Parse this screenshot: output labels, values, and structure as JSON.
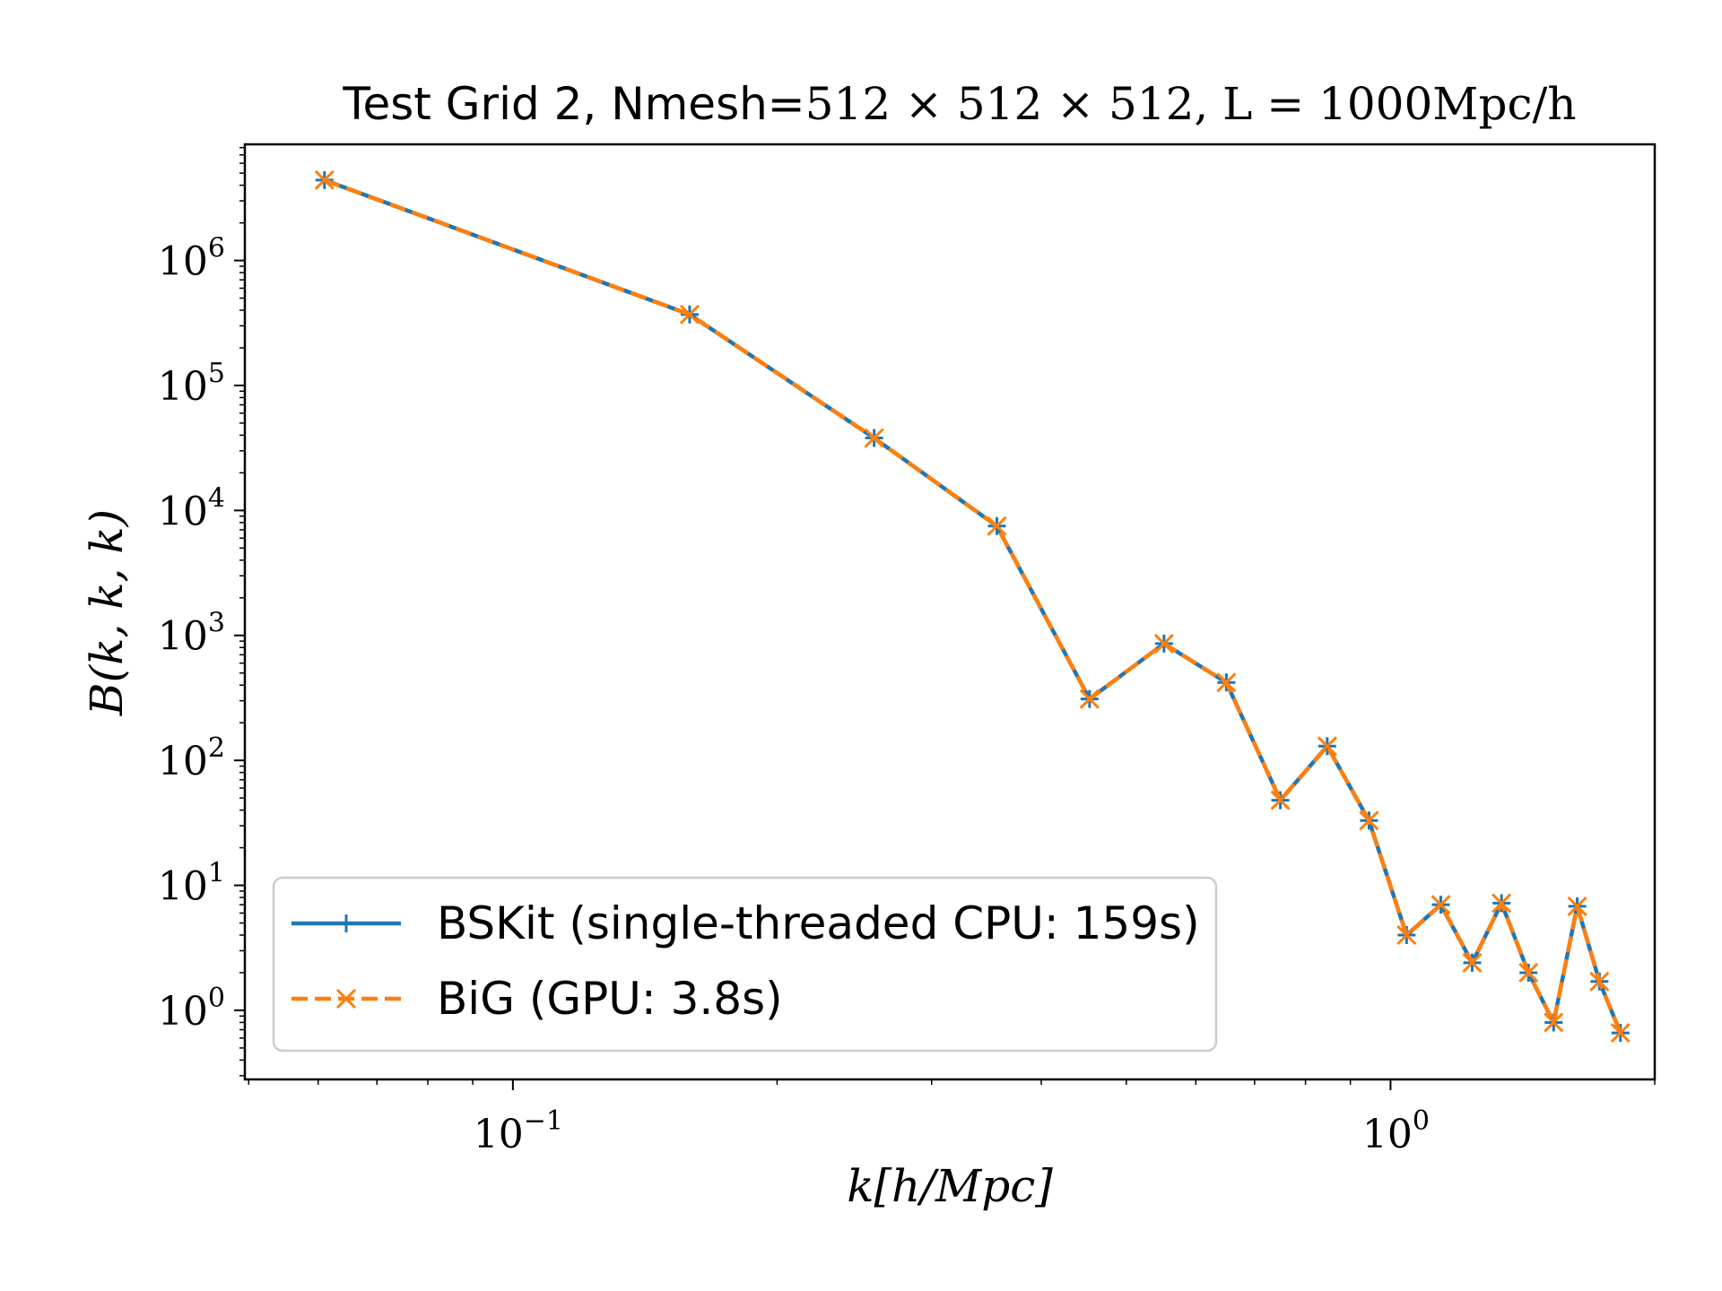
{
  "chart_data": {
    "type": "line",
    "title_prefix": "Test Grid 2, Nmesh=",
    "title_math": "512 × 512 × 512, L = 1000Mpc/h",
    "xlabel": "k[h/Mpc]",
    "ylabel": "B(k, k, k)",
    "xscale": "log",
    "yscale": "log",
    "xlim": [
      0.0495,
      2.0
    ],
    "ylim": [
      0.28,
      8500000
    ],
    "x_ticks": [
      {
        "value": 0.1,
        "base": "10",
        "exp": "−1"
      },
      {
        "value": 1,
        "base": "10",
        "exp": "0"
      }
    ],
    "y_ticks": [
      {
        "value": 1,
        "base": "10",
        "exp": "0"
      },
      {
        "value": 10,
        "base": "10",
        "exp": "1"
      },
      {
        "value": 100,
        "base": "10",
        "exp": "2"
      },
      {
        "value": 1000,
        "base": "10",
        "exp": "3"
      },
      {
        "value": 10000,
        "base": "10",
        "exp": "4"
      },
      {
        "value": 100000,
        "base": "10",
        "exp": "5"
      },
      {
        "value": 1000000,
        "base": "10",
        "exp": "6"
      }
    ],
    "x": [
      0.061,
      0.159,
      0.258,
      0.356,
      0.454,
      0.552,
      0.65,
      0.749,
      0.847,
      0.945,
      1.043,
      1.141,
      1.239,
      1.338,
      1.436,
      1.534,
      1.632,
      1.73,
      1.828
    ],
    "series": [
      {
        "name": "BSKit (single-threaded CPU: 159s)",
        "color": "#1f77b4",
        "marker": "plus",
        "linestyle": "solid",
        "values": [
          4400000,
          370000,
          38000,
          7500,
          310,
          860,
          420,
          48,
          130,
          33,
          4.0,
          7.0,
          2.4,
          7.2,
          2.0,
          0.8,
          6.8,
          1.7,
          0.66
        ]
      },
      {
        "name": "BiG (GPU: 3.8s)",
        "color": "#ff7f0e",
        "marker": "x",
        "linestyle": "dashed",
        "values": [
          4400000,
          370000,
          38000,
          7500,
          310,
          860,
          420,
          48,
          130,
          33,
          4.0,
          7.0,
          2.4,
          7.2,
          2.0,
          0.8,
          6.8,
          1.7,
          0.66
        ]
      }
    ],
    "legend_position": "lower-left",
    "grid": false
  }
}
